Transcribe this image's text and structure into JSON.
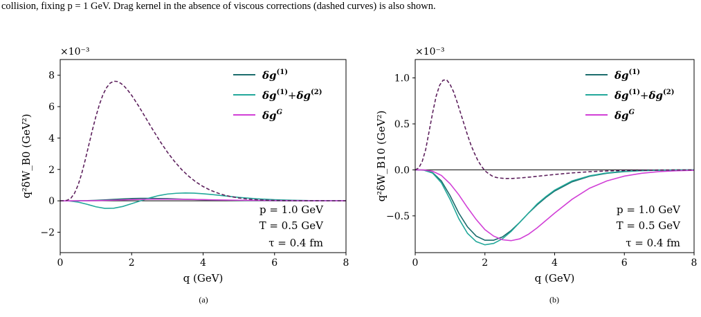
{
  "caption": "collision, fixing p = 1 GeV. Drag kernel in the absence of viscous corrections (dashed curves) is also shown.",
  "colors": {
    "dg1": "#1a6b6b",
    "dg12": "#22a89a",
    "dgG": "#d13fd6",
    "dashed": "#5c1f5c"
  },
  "chart_data": [
    {
      "type": "line",
      "panel_label": "(a)",
      "xlabel": "q (GeV)",
      "ylabel": "q²δW_B0 (GeV²)",
      "scale_label": "×10⁻³",
      "xlim": [
        0,
        8
      ],
      "ylim": [
        -3.3,
        9.0
      ],
      "xticks": [
        0,
        2,
        4,
        6,
        8
      ],
      "yticks": [
        -2,
        0,
        2,
        4,
        6,
        8
      ],
      "ytick_labels": [
        "−2",
        "0",
        "2",
        "4",
        "6",
        "8"
      ],
      "legend_position": "top-right",
      "annotations": [
        "p = 1.0 GeV",
        "T = 0.5 GeV",
        "τ = 0.4 fm"
      ],
      "series": [
        {
          "name": "δg(1)",
          "color_key": "dg1",
          "style": "solid",
          "x": [
            0,
            0.25,
            0.5,
            0.75,
            1,
            1.25,
            1.5,
            1.75,
            2,
            2.25,
            2.5,
            2.75,
            3,
            3.25,
            3.5,
            3.75,
            4,
            4.25,
            4.5,
            4.75,
            5,
            5.5,
            6,
            6.5,
            7,
            7.5,
            8
          ],
          "y": [
            0,
            0.001,
            0.004,
            0.012,
            0.03,
            0.06,
            0.09,
            0.12,
            0.15,
            0.16,
            0.16,
            0.15,
            0.14,
            0.12,
            0.1,
            0.085,
            0.07,
            0.055,
            0.045,
            0.035,
            0.027,
            0.015,
            0.008,
            0.004,
            0.002,
            0.001,
            0
          ]
        },
        {
          "name": "δg(1)+δg(2)",
          "color_key": "dg12",
          "style": "solid",
          "x": [
            0,
            0.25,
            0.5,
            0.75,
            1,
            1.25,
            1.5,
            1.75,
            2,
            2.25,
            2.5,
            2.75,
            3,
            3.25,
            3.5,
            3.75,
            4,
            4.25,
            4.5,
            4.75,
            5,
            5.5,
            6,
            6.5,
            7,
            7.5,
            8
          ],
          "y": [
            0,
            -0.01,
            -0.08,
            -0.22,
            -0.38,
            -0.48,
            -0.47,
            -0.36,
            -0.18,
            0.0,
            0.18,
            0.33,
            0.43,
            0.48,
            0.5,
            0.49,
            0.45,
            0.4,
            0.34,
            0.28,
            0.22,
            0.13,
            0.07,
            0.035,
            0.017,
            0.008,
            0.003
          ]
        },
        {
          "name": "δg^G",
          "color_key": "dgG",
          "style": "solid",
          "x": [
            0,
            0.5,
            1,
            1.5,
            2,
            2.5,
            3,
            3.5,
            4,
            4.5,
            5,
            6,
            7,
            8
          ],
          "y": [
            0,
            0.0,
            0.01,
            0.04,
            0.08,
            0.1,
            0.1,
            0.09,
            0.075,
            0.055,
            0.04,
            0.018,
            0.007,
            0.002
          ]
        },
        {
          "name": "",
          "color_key": "dashed",
          "style": "dashed",
          "x": [
            0,
            0.1,
            0.2,
            0.3,
            0.4,
            0.5,
            0.6,
            0.7,
            0.8,
            0.9,
            1.0,
            1.1,
            1.2,
            1.3,
            1.4,
            1.5,
            1.6,
            1.7,
            1.8,
            1.9,
            2.0,
            2.2,
            2.4,
            2.6,
            2.8,
            3.0,
            3.2,
            3.4,
            3.6,
            3.8,
            4.0,
            4.2,
            4.4,
            4.6,
            4.8,
            5.0,
            5.2,
            5.4,
            5.6,
            5.8,
            6.0,
            6.3,
            6.6,
            7.0,
            7.5,
            8.0
          ],
          "y": [
            0,
            0.003,
            0.04,
            0.17,
            0.48,
            1.0,
            1.72,
            2.6,
            3.55,
            4.5,
            5.38,
            6.15,
            6.78,
            7.22,
            7.5,
            7.62,
            7.6,
            7.48,
            7.28,
            7.02,
            6.72,
            6.02,
            5.26,
            4.5,
            3.77,
            3.1,
            2.51,
            1.99,
            1.56,
            1.2,
            0.91,
            0.68,
            0.5,
            0.36,
            0.26,
            0.18,
            0.125,
            0.085,
            0.057,
            0.038,
            0.025,
            0.013,
            0.007,
            0.003,
            0.001,
            0
          ]
        }
      ]
    },
    {
      "type": "line",
      "panel_label": "(b)",
      "xlabel": "q (GeV)",
      "ylabel": "q²δW_B10 (GeV²)",
      "scale_label": "×10⁻³",
      "xlim": [
        0,
        8
      ],
      "ylim": [
        -0.9,
        1.2
      ],
      "xticks": [
        0,
        2,
        4,
        6,
        8
      ],
      "yticks": [
        -0.5,
        0.0,
        0.5,
        1.0
      ],
      "ytick_labels": [
        "−0.5",
        "0.0",
        "0.5",
        "1.0"
      ],
      "legend_position": "top-right",
      "annotations": [
        "p = 1.0 GeV",
        "T = 0.5 GeV",
        "τ = 0.4 fm"
      ],
      "series": [
        {
          "name": "δg(1)",
          "color_key": "dg1",
          "style": "solid",
          "x": [
            0,
            0.25,
            0.5,
            0.75,
            1,
            1.25,
            1.5,
            1.75,
            2,
            2.25,
            2.5,
            2.75,
            3,
            3.25,
            3.5,
            3.75,
            4,
            4.5,
            5,
            5.5,
            6,
            6.5,
            7,
            7.5,
            8
          ],
          "y": [
            0,
            -0.003,
            -0.03,
            -0.12,
            -0.28,
            -0.47,
            -0.62,
            -0.72,
            -0.765,
            -0.765,
            -0.73,
            -0.66,
            -0.57,
            -0.47,
            -0.38,
            -0.3,
            -0.23,
            -0.13,
            -0.07,
            -0.037,
            -0.019,
            -0.009,
            -0.004,
            -0.002,
            -0.001
          ]
        },
        {
          "name": "δg(1)+δg(2)",
          "color_key": "dg12",
          "style": "solid",
          "x": [
            0,
            0.25,
            0.5,
            0.75,
            1,
            1.25,
            1.5,
            1.75,
            2,
            2.25,
            2.5,
            2.75,
            3,
            3.25,
            3.5,
            3.75,
            4,
            4.5,
            5,
            5.5,
            6,
            6.5,
            7,
            7.5,
            8
          ],
          "y": [
            0,
            -0.003,
            -0.035,
            -0.14,
            -0.32,
            -0.53,
            -0.69,
            -0.78,
            -0.815,
            -0.8,
            -0.75,
            -0.67,
            -0.57,
            -0.47,
            -0.37,
            -0.29,
            -0.22,
            -0.12,
            -0.065,
            -0.033,
            -0.016,
            -0.008,
            -0.004,
            -0.002,
            -0.001
          ]
        },
        {
          "name": "δg^G",
          "color_key": "dgG",
          "style": "solid",
          "x": [
            0,
            0.25,
            0.5,
            0.75,
            1,
            1.25,
            1.5,
            1.75,
            2,
            2.25,
            2.5,
            2.75,
            3,
            3.25,
            3.5,
            3.75,
            4,
            4.5,
            5,
            5.5,
            6,
            6.5,
            7,
            7.5,
            8
          ],
          "y": [
            0,
            -0.001,
            -0.015,
            -0.06,
            -0.15,
            -0.27,
            -0.41,
            -0.54,
            -0.65,
            -0.72,
            -0.76,
            -0.77,
            -0.75,
            -0.7,
            -0.63,
            -0.55,
            -0.47,
            -0.32,
            -0.2,
            -0.12,
            -0.068,
            -0.037,
            -0.019,
            -0.01,
            -0.005
          ]
        },
        {
          "name": "",
          "color_key": "dashed",
          "style": "dashed",
          "x": [
            0,
            0.1,
            0.2,
            0.3,
            0.4,
            0.5,
            0.6,
            0.7,
            0.8,
            0.9,
            1.0,
            1.1,
            1.2,
            1.3,
            1.4,
            1.5,
            1.6,
            1.7,
            1.8,
            1.9,
            2.0,
            2.1,
            2.2,
            2.3,
            2.4,
            2.6,
            2.8,
            3.0,
            3.3,
            3.6,
            4.0,
            4.5,
            5.0,
            5.5,
            6.0,
            7.0,
            8.0
          ],
          "y": [
            0,
            0.02,
            0.09,
            0.22,
            0.42,
            0.62,
            0.8,
            0.92,
            0.975,
            0.98,
            0.93,
            0.85,
            0.74,
            0.62,
            0.5,
            0.38,
            0.27,
            0.18,
            0.1,
            0.04,
            -0.01,
            -0.04,
            -0.065,
            -0.08,
            -0.088,
            -0.094,
            -0.093,
            -0.088,
            -0.078,
            -0.066,
            -0.05,
            -0.033,
            -0.02,
            -0.012,
            -0.007,
            -0.002,
            0
          ]
        }
      ]
    }
  ]
}
